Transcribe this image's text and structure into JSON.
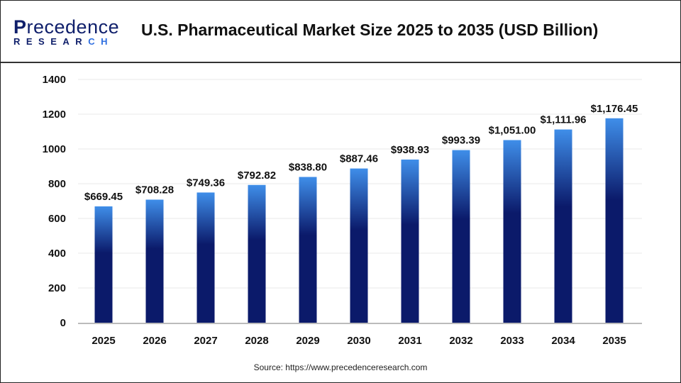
{
  "header": {
    "logo_line1": "Precedence",
    "logo_line2": "RESEARCH",
    "title": "U.S. Pharmaceutical Market Size 2025 to 2035 (USD Billion)"
  },
  "source": "Source: https://www.precedenceresearch.com",
  "colors": {
    "bar_top": "#3f8ee9",
    "bar_bottom": "#0b1a6a",
    "grid": "#e8e8e8"
  },
  "chart_data": {
    "type": "bar",
    "title": "U.S. Pharmaceutical Market Size 2025 to 2035 (USD Billion)",
    "xlabel": "",
    "ylabel": "",
    "ylim": [
      0,
      1400
    ],
    "yticks": [
      0,
      200,
      400,
      600,
      800,
      1000,
      1200,
      1400
    ],
    "grid": true,
    "categories": [
      "2025",
      "2026",
      "2027",
      "2028",
      "2029",
      "2030",
      "2031",
      "2032",
      "2033",
      "2034",
      "2035"
    ],
    "values": [
      669.45,
      708.28,
      749.36,
      792.82,
      838.8,
      887.46,
      938.93,
      993.39,
      1051.0,
      1111.96,
      1176.45
    ],
    "labels": [
      "$669.45",
      "$708.28",
      "$749.36",
      "$792.82",
      "$838.80",
      "$887.46",
      "$938.93",
      "$993.39",
      "$1,051.00",
      "$1,111.96",
      "$1,176.45"
    ]
  }
}
